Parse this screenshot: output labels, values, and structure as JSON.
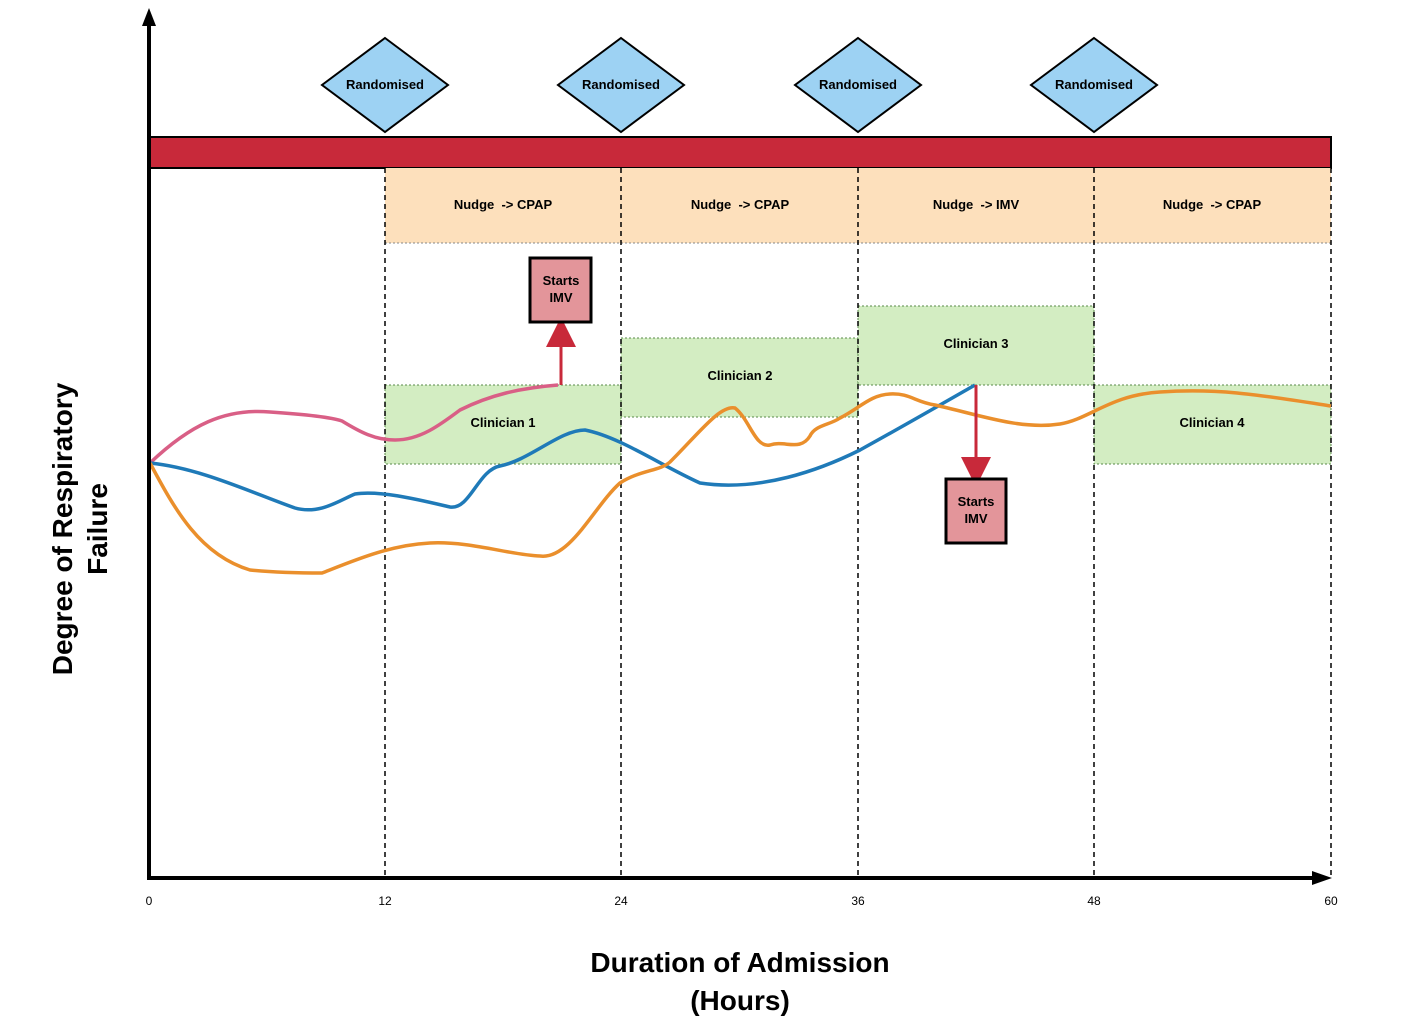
{
  "axes": {
    "y_label_line1": "Degree of Respiratory",
    "y_label_line2": "Failure",
    "x_label_line1": "Duration of Admission",
    "x_label_line2": "(Hours)",
    "x_ticks": [
      "0",
      "12",
      "24",
      "36",
      "48",
      "60"
    ]
  },
  "randomised": [
    "Randomised",
    "Randomised",
    "Randomised",
    "Randomised"
  ],
  "nudges": [
    "Nudge  -> CPAP",
    "Nudge  -> CPAP",
    "Nudge  -> IMV",
    "Nudge  -> CPAP"
  ],
  "clinicians": [
    "Clinician 1",
    "Clinician 2",
    "Clinician 3",
    "Clinician 4"
  ],
  "events": [
    {
      "line1": "Starts",
      "line2": "IMV"
    },
    {
      "line1": "Starts",
      "line2": "IMV"
    }
  ],
  "colors": {
    "red_bar": "#c8293a",
    "diamond_fill": "#9dd2f3",
    "nudge_fill": "#fde0bc",
    "clinician_fill": "#d3edc2",
    "event_fill": "#e3959a",
    "pink_curve": "#d95f86",
    "blue_curve": "#1f7ab8",
    "orange_curve": "#ea8f2c",
    "arrow": "#c8293a"
  }
}
